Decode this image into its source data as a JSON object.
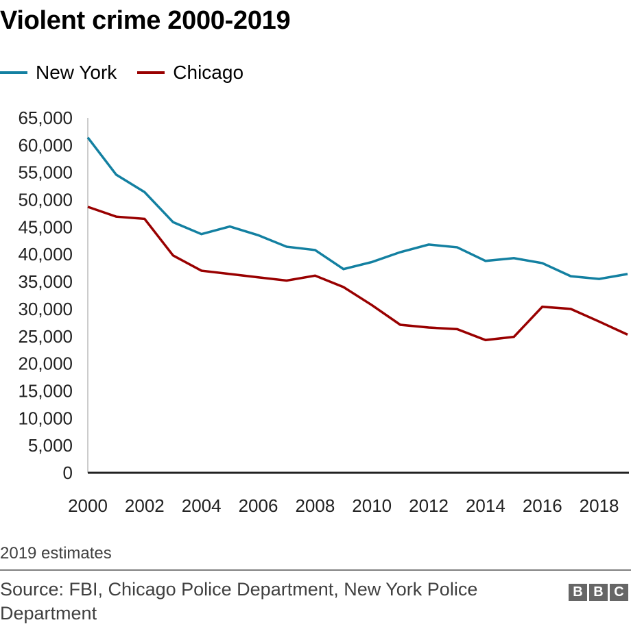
{
  "header": {
    "title": "Violent crime 2000-2019"
  },
  "legend": [
    {
      "label": "New York",
      "color": "#1380a1"
    },
    {
      "label": "Chicago",
      "color": "#990000"
    }
  ],
  "footer": {
    "note": "2019 estimates",
    "source": "Source: FBI, Chicago Police Department, New York Police Department",
    "logo": [
      "B",
      "B",
      "C"
    ]
  },
  "chart_data": {
    "type": "line",
    "title": "Violent crime 2000-2019",
    "xlabel": "",
    "ylabel": "",
    "x": [
      2000,
      2001,
      2002,
      2003,
      2004,
      2005,
      2006,
      2007,
      2008,
      2009,
      2010,
      2011,
      2012,
      2013,
      2014,
      2015,
      2016,
      2017,
      2018,
      2019
    ],
    "xlim": [
      2000,
      2019
    ],
    "xticks": [
      "2000",
      "2002",
      "2004",
      "2006",
      "2008",
      "2010",
      "2012",
      "2014",
      "2016",
      "2018"
    ],
    "xtick_values": [
      2000,
      2002,
      2004,
      2006,
      2008,
      2010,
      2012,
      2014,
      2016,
      2018
    ],
    "ylim": [
      0,
      65000
    ],
    "yticks": [
      "0",
      "5,000",
      "10,000",
      "15,000",
      "20,000",
      "25,000",
      "30,000",
      "35,000",
      "40,000",
      "45,000",
      "50,000",
      "55,000",
      "60,000",
      "65,000"
    ],
    "ytick_values": [
      0,
      5000,
      10000,
      15000,
      20000,
      25000,
      30000,
      35000,
      40000,
      45000,
      50000,
      55000,
      60000,
      65000
    ],
    "grid": false,
    "legend_position": "top-left",
    "series": [
      {
        "name": "New York",
        "color": "#1380a1",
        "values": [
          61400,
          54600,
          51400,
          45900,
          43700,
          45100,
          43500,
          41400,
          40800,
          37300,
          38600,
          40400,
          41800,
          41300,
          38800,
          39300,
          38400,
          36000,
          35500,
          36400
        ]
      },
      {
        "name": "Chicago",
        "color": "#990000",
        "values": [
          48700,
          46900,
          46500,
          39800,
          37000,
          36400,
          35800,
          35200,
          36100,
          34000,
          30700,
          27100,
          26600,
          26300,
          24300,
          24900,
          30400,
          30000,
          27700,
          25300
        ]
      }
    ],
    "annotations": [
      "2019 estimates"
    ]
  }
}
